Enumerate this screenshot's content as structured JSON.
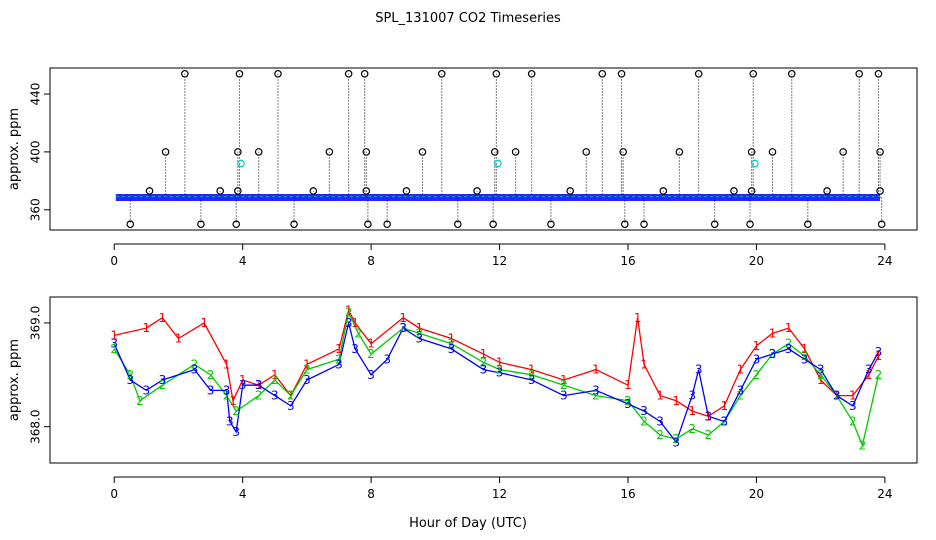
{
  "chart_data": {
    "title": "SPL_131007  CO2 Timeseries",
    "xlabel": "Hour of Day (UTC)",
    "panels": [
      {
        "type": "scatter",
        "ylabel": "approx. ppm",
        "xlim": [
          -2,
          25
        ],
        "ylim": [
          346,
          458
        ],
        "xticks": [
          0,
          4,
          8,
          12,
          16,
          20,
          24
        ],
        "yticks": [
          360,
          400,
          440
        ],
        "baseline": 368.5,
        "dense_line": {
          "name": "series 1-3 dense",
          "color": "#0000ff",
          "x_start": 0.05,
          "x_end": 23.85,
          "y": 368.5
        },
        "spikes": [
          {
            "x": 0.5,
            "y": 350
          },
          {
            "x": 1.1,
            "y": 373
          },
          {
            "x": 1.6,
            "y": 400
          },
          {
            "x": 2.2,
            "y": 454
          },
          {
            "x": 2.7,
            "y": 350
          },
          {
            "x": 3.3,
            "y": 373
          },
          {
            "x": 3.8,
            "y": 350
          },
          {
            "x": 3.85,
            "y": 400
          },
          {
            "x": 3.9,
            "y": 454
          },
          {
            "x": 3.85,
            "y": 373
          },
          {
            "x": 4.5,
            "y": 400
          },
          {
            "x": 5.1,
            "y": 454
          },
          {
            "x": 5.6,
            "y": 350
          },
          {
            "x": 6.2,
            "y": 373
          },
          {
            "x": 6.7,
            "y": 400
          },
          {
            "x": 7.3,
            "y": 454
          },
          {
            "x": 7.8,
            "y": 454
          },
          {
            "x": 7.85,
            "y": 400
          },
          {
            "x": 7.9,
            "y": 350
          },
          {
            "x": 7.85,
            "y": 373
          },
          {
            "x": 8.5,
            "y": 350
          },
          {
            "x": 9.1,
            "y": 373
          },
          {
            "x": 9.6,
            "y": 400
          },
          {
            "x": 10.2,
            "y": 454
          },
          {
            "x": 10.7,
            "y": 350
          },
          {
            "x": 11.3,
            "y": 373
          },
          {
            "x": 11.8,
            "y": 350
          },
          {
            "x": 11.85,
            "y": 400
          },
          {
            "x": 11.9,
            "y": 454
          },
          {
            "x": 12.5,
            "y": 400
          },
          {
            "x": 13.0,
            "y": 454
          },
          {
            "x": 13.6,
            "y": 350
          },
          {
            "x": 14.2,
            "y": 373
          },
          {
            "x": 14.7,
            "y": 400
          },
          {
            "x": 15.2,
            "y": 454
          },
          {
            "x": 15.8,
            "y": 454
          },
          {
            "x": 15.85,
            "y": 400
          },
          {
            "x": 15.9,
            "y": 350
          },
          {
            "x": 16.5,
            "y": 350
          },
          {
            "x": 17.1,
            "y": 373
          },
          {
            "x": 17.6,
            "y": 400
          },
          {
            "x": 18.2,
            "y": 454
          },
          {
            "x": 18.7,
            "y": 350
          },
          {
            "x": 19.3,
            "y": 373
          },
          {
            "x": 19.8,
            "y": 350
          },
          {
            "x": 19.85,
            "y": 400
          },
          {
            "x": 19.9,
            "y": 454
          },
          {
            "x": 19.85,
            "y": 373
          },
          {
            "x": 20.5,
            "y": 400
          },
          {
            "x": 21.1,
            "y": 454
          },
          {
            "x": 21.6,
            "y": 350
          },
          {
            "x": 22.2,
            "y": 373
          },
          {
            "x": 22.7,
            "y": 400
          },
          {
            "x": 23.2,
            "y": 454
          },
          {
            "x": 23.8,
            "y": 454
          },
          {
            "x": 23.85,
            "y": 400
          },
          {
            "x": 23.9,
            "y": 350
          },
          {
            "x": 23.85,
            "y": 373
          }
        ],
        "cyan_points": [
          {
            "x": 3.95,
            "y": 392
          },
          {
            "x": 11.95,
            "y": 392
          },
          {
            "x": 19.95,
            "y": 392
          }
        ]
      },
      {
        "type": "line",
        "ylabel": "approx. ppm",
        "xlim": [
          -2,
          25
        ],
        "ylim": [
          367.65,
          369.25
        ],
        "xticks": [
          0,
          4,
          8,
          12,
          16,
          20,
          24
        ],
        "ytick_values": [
          368.0,
          369.0
        ],
        "ytick_labels": [
          "368.0",
          "369.0"
        ],
        "series": [
          {
            "name": "1",
            "color": "#ff0000",
            "x": [
              0.0,
              1.0,
              1.5,
              2.0,
              2.8,
              3.5,
              3.7,
              4.0,
              4.5,
              5.0,
              5.5,
              6.0,
              7.0,
              7.3,
              7.5,
              8.0,
              9.0,
              9.5,
              10.5,
              11.5,
              12.0,
              13.0,
              14.0,
              15.0,
              16.0,
              16.3,
              16.5,
              17.0,
              17.5,
              18.0,
              18.5,
              19.0,
              19.5,
              20.0,
              20.5,
              21.0,
              21.5,
              22.0,
              22.5,
              23.0,
              23.5,
              23.8
            ],
            "y": [
              368.88,
              368.95,
              369.05,
              368.85,
              369.0,
              368.6,
              368.25,
              368.45,
              368.4,
              368.5,
              368.3,
              368.6,
              368.75,
              369.12,
              369.0,
              368.8,
              369.05,
              368.95,
              368.85,
              368.7,
              368.62,
              368.55,
              368.45,
              368.55,
              368.4,
              369.05,
              368.6,
              368.3,
              368.25,
              368.15,
              368.1,
              368.2,
              368.55,
              368.78,
              368.9,
              368.95,
              368.75,
              368.45,
              368.3,
              368.3,
              368.5,
              368.68
            ]
          },
          {
            "name": "2",
            "color": "#00cc00",
            "x": [
              0.0,
              0.5,
              0.8,
              1.5,
              2.5,
              3.0,
              3.5,
              3.8,
              4.5,
              5.0,
              5.5,
              6.0,
              7.0,
              7.3,
              7.6,
              8.0,
              9.0,
              9.5,
              10.5,
              11.5,
              12.0,
              13.0,
              14.0,
              15.0,
              16.0,
              16.5,
              17.0,
              17.5,
              18.0,
              18.5,
              19.0,
              19.5,
              20.0,
              20.5,
              21.0,
              21.5,
              22.0,
              22.5,
              23.0,
              23.3,
              23.8
            ],
            "y": [
              368.75,
              368.5,
              368.25,
              368.4,
              368.6,
              368.5,
              368.3,
              368.15,
              368.3,
              368.45,
              368.3,
              368.55,
              368.65,
              369.1,
              368.9,
              368.7,
              368.95,
              368.9,
              368.8,
              368.62,
              368.55,
              368.5,
              368.4,
              368.3,
              368.25,
              368.05,
              367.92,
              367.88,
              367.98,
              367.92,
              368.05,
              368.3,
              368.5,
              368.7,
              368.8,
              368.68,
              368.5,
              368.3,
              368.05,
              367.82,
              368.5
            ]
          },
          {
            "name": "3",
            "color": "#0000ff",
            "x": [
              0.0,
              0.5,
              1.0,
              1.5,
              2.5,
              3.0,
              3.5,
              3.6,
              3.8,
              4.0,
              4.5,
              5.0,
              5.5,
              6.0,
              7.0,
              7.3,
              7.5,
              8.0,
              8.5,
              9.0,
              9.5,
              10.5,
              11.5,
              12.0,
              13.0,
              14.0,
              15.0,
              16.0,
              16.5,
              17.0,
              17.5,
              18.0,
              18.2,
              18.5,
              19.0,
              19.5,
              20.0,
              20.5,
              21.0,
              21.5,
              22.0,
              22.5,
              23.0,
              23.5,
              23.8
            ],
            "y": [
              368.8,
              368.45,
              368.35,
              368.45,
              368.55,
              368.35,
              368.35,
              368.05,
              367.95,
              368.4,
              368.4,
              368.3,
              368.2,
              368.45,
              368.6,
              369.0,
              368.75,
              368.5,
              368.65,
              368.95,
              368.85,
              368.75,
              368.55,
              368.52,
              368.45,
              368.3,
              368.35,
              368.22,
              368.15,
              368.05,
              367.85,
              368.3,
              368.55,
              368.1,
              368.05,
              368.35,
              368.65,
              368.7,
              368.75,
              368.65,
              368.55,
              368.3,
              368.2,
              368.55,
              368.72
            ]
          }
        ]
      }
    ]
  }
}
